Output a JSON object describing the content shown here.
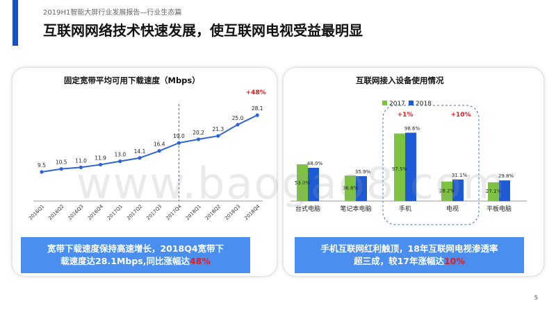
{
  "header": {
    "subtitle": "2019H1智能大屏行业发展报告—行业生态篇",
    "title": "互联网网络技术快速发展，使互联网电视受益最明显"
  },
  "left_panel": {
    "callout": {
      "line1": "宽带下载速度保持高速增长，2018Q4宽带下",
      "line2": "载速度达28.1Mbps,同比涨幅达",
      "highlight": "48%"
    }
  },
  "right_panel": {
    "callout": {
      "line1": "手机互联网红利触顶，18年互联网电视渗透率",
      "line2": "超三成，较17年涨幅达",
      "highlight": "10%"
    }
  },
  "watermark": "www.baogao8.com",
  "page_number": "5",
  "colors": {
    "line": "#2e63d6",
    "bar2017": "#7dc240",
    "bar2018": "#1d5bd6",
    "highlight": "#e81b1b",
    "callout": "#4a8ff0"
  },
  "chart_data": [
    {
      "type": "line",
      "title": "固定宽带平均可用下载速度（Mbps）",
      "categories": [
        "2016Q1",
        "2016Q2",
        "2016Q3",
        "2016Q4",
        "2017Q1",
        "2017Q2",
        "2017Q3",
        "2017Q4",
        "2018Q1",
        "2018Q2",
        "2018Q3",
        "2018Q4"
      ],
      "values": [
        9.5,
        10.5,
        11.0,
        11.9,
        13.0,
        14.1,
        16.4,
        19.0,
        20.2,
        21.3,
        25.0,
        28.1
      ],
      "annotation": "+48%",
      "ylim": [
        0,
        32
      ]
    },
    {
      "type": "bar",
      "title": "互联网接入设备使用情况",
      "categories": [
        "台式电脑",
        "笔记本电脑",
        "手机",
        "电视",
        "平板电脑"
      ],
      "series": [
        {
          "name": "2017",
          "values": [
            53.0,
            36.8,
            97.5,
            28.2,
            27.1
          ],
          "labels": [
            "53.0%",
            "36.8%",
            "97.5%",
            "28.2%",
            "27.1%"
          ]
        },
        {
          "name": "2018",
          "values": [
            48.0,
            35.9,
            98.6,
            31.1,
            29.8
          ],
          "labels": [
            "48.0%",
            "35.9%",
            "98.6%",
            "31.1%",
            "29.8%"
          ]
        }
      ],
      "annotations": [
        "+1%",
        "+10%"
      ],
      "ylim": [
        0,
        110
      ]
    }
  ]
}
